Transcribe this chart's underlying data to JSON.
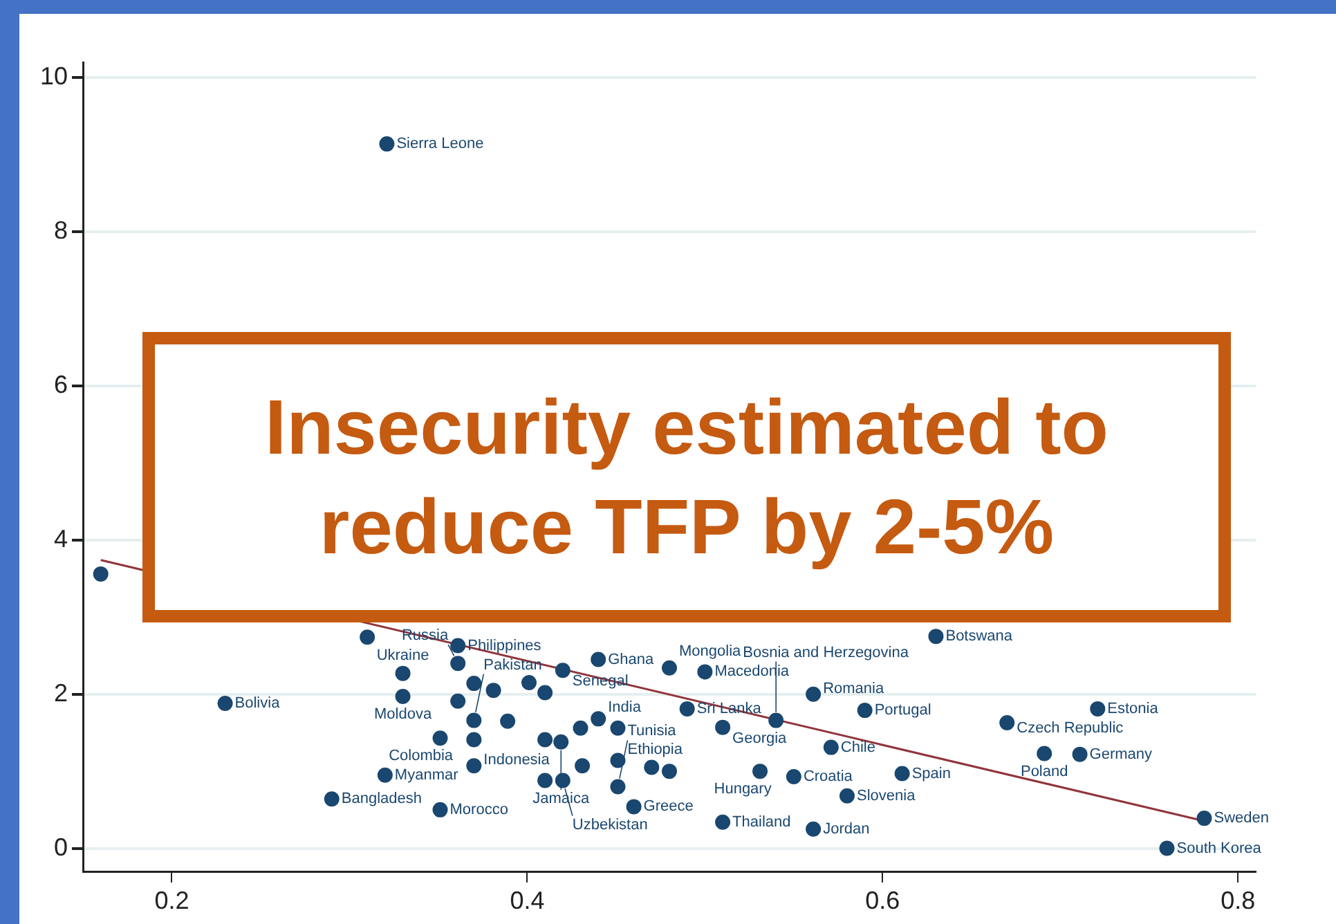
{
  "chart_data": {
    "type": "scatter",
    "xlim": [
      0.15,
      0.81
    ],
    "ylim": [
      -0.3,
      10.2
    ],
    "xticks": [
      0.2,
      0.4,
      0.6,
      0.8
    ],
    "yticks": [
      0,
      2,
      4,
      6,
      8,
      10
    ],
    "grid": "y",
    "legend": false,
    "series": [
      {
        "type": "scatter",
        "marker": "circle",
        "color": "#1a476f",
        "x": [
          0.321,
          0.16,
          0.23,
          0.29,
          0.32,
          0.351,
          0.31,
          0.33,
          0.33,
          0.351,
          0.37,
          0.361,
          0.361,
          0.37,
          0.37,
          0.44,
          0.48,
          0.5,
          0.49,
          0.51,
          0.46,
          0.51,
          0.561,
          0.531,
          0.55,
          0.561,
          0.54,
          0.59,
          0.571,
          0.611,
          0.58,
          0.63,
          0.67,
          0.721,
          0.691,
          0.711,
          0.781,
          0.76,
          0.42,
          0.37,
          0.381,
          0.401,
          0.41,
          0.361,
          0.389,
          0.44,
          0.43,
          0.451,
          0.41,
          0.419,
          0.431,
          0.451,
          0.47,
          0.48,
          0.41,
          0.42,
          0.451
        ],
        "values": [
          9.14,
          3.56,
          1.88,
          0.64,
          0.95,
          0.5,
          2.74,
          2.27,
          1.97,
          1.43,
          1.07,
          2.63,
          2.4,
          1.66,
          1.41,
          2.45,
          2.34,
          2.29,
          1.81,
          1.57,
          0.54,
          0.34,
          0.25,
          1.0,
          0.93,
          2.0,
          1.66,
          1.79,
          1.31,
          0.97,
          0.68,
          2.75,
          1.63,
          1.81,
          1.23,
          1.22,
          0.39,
          0.0,
          2.31,
          2.14,
          2.05,
          2.15,
          2.02,
          1.91,
          1.65,
          1.68,
          1.56,
          1.56,
          1.41,
          1.38,
          1.07,
          1.14,
          1.05,
          1.0,
          0.88,
          0.88,
          0.8
        ]
      },
      {
        "type": "line",
        "color": "#90353b",
        "x": [
          0.16,
          0.78
        ],
        "values": [
          3.74,
          0.36
        ]
      }
    ],
    "annotations": [
      "Insecurity estimated to reduce TFP by 2-5%",
      {
        "text": "Sierra Leone",
        "x": 0.321,
        "y": 9.14
      },
      {
        "text": "Bolivia",
        "x": 0.23,
        "y": 1.88
      },
      {
        "text": "Bangladesh",
        "x": 0.29,
        "y": 0.64
      },
      {
        "text": "Myanmar",
        "x": 0.32,
        "y": 0.95
      },
      {
        "text": "Morocco",
        "x": 0.351,
        "y": 0.5
      },
      {
        "text": "Ukraine",
        "x": 0.33,
        "y": 2.27
      },
      {
        "text": "Moldova",
        "x": 0.33,
        "y": 1.97
      },
      {
        "text": "Colombia",
        "x": 0.351,
        "y": 1.43
      },
      {
        "text": "Indonesia",
        "x": 0.37,
        "y": 1.07
      },
      {
        "text": "Philippines",
        "x": 0.361,
        "y": 2.63
      },
      {
        "text": "Russia",
        "x": 0.361,
        "y": 2.4
      },
      {
        "text": "Pakistan",
        "x": 0.37,
        "y": 1.66
      },
      {
        "text": "Ghana",
        "x": 0.44,
        "y": 2.45
      },
      {
        "text": "Mongolia",
        "x": 0.48,
        "y": 2.34
      },
      {
        "text": "Macedonia",
        "x": 0.5,
        "y": 2.29
      },
      {
        "text": "Sri Lanka",
        "x": 0.49,
        "y": 1.81
      },
      {
        "text": "Georgia",
        "x": 0.51,
        "y": 1.57
      },
      {
        "text": "Greece",
        "x": 0.46,
        "y": 0.54
      },
      {
        "text": "Thailand",
        "x": 0.51,
        "y": 0.34
      },
      {
        "text": "Jordan",
        "x": 0.561,
        "y": 0.25
      },
      {
        "text": "Hungary",
        "x": 0.531,
        "y": 1.0
      },
      {
        "text": "Croatia",
        "x": 0.55,
        "y": 0.93
      },
      {
        "text": "Romania",
        "x": 0.561,
        "y": 2.0
      },
      {
        "text": "Bosnia and Herzegovina",
        "x": 0.54,
        "y": 1.66
      },
      {
        "text": "Portugal",
        "x": 0.59,
        "y": 1.79
      },
      {
        "text": "Chile",
        "x": 0.571,
        "y": 1.31
      },
      {
        "text": "Spain",
        "x": 0.611,
        "y": 0.97
      },
      {
        "text": "Slovenia",
        "x": 0.58,
        "y": 0.68
      },
      {
        "text": "Botswana",
        "x": 0.63,
        "y": 2.75
      },
      {
        "text": "Czech Republic",
        "x": 0.67,
        "y": 1.63
      },
      {
        "text": "Estonia",
        "x": 0.721,
        "y": 1.81
      },
      {
        "text": "Poland",
        "x": 0.691,
        "y": 1.23
      },
      {
        "text": "Germany",
        "x": 0.711,
        "y": 1.22
      },
      {
        "text": "Sweden",
        "x": 0.781,
        "y": 0.39
      },
      {
        "text": "South Korea",
        "x": 0.76,
        "y": 0.0
      },
      {
        "text": "Senegal",
        "x": 0.42,
        "y": 2.31
      },
      {
        "text": "India",
        "x": 0.44,
        "y": 1.68
      },
      {
        "text": "Jamaica",
        "x": 0.419,
        "y": 1.38
      },
      {
        "text": "Ethiopia",
        "x": 0.451,
        "y": 1.14
      },
      {
        "text": "Uzbekistan",
        "x": 0.42,
        "y": 0.88
      },
      {
        "text": "Tunisia",
        "x": 0.451,
        "y": 0.8
      }
    ]
  }
}
